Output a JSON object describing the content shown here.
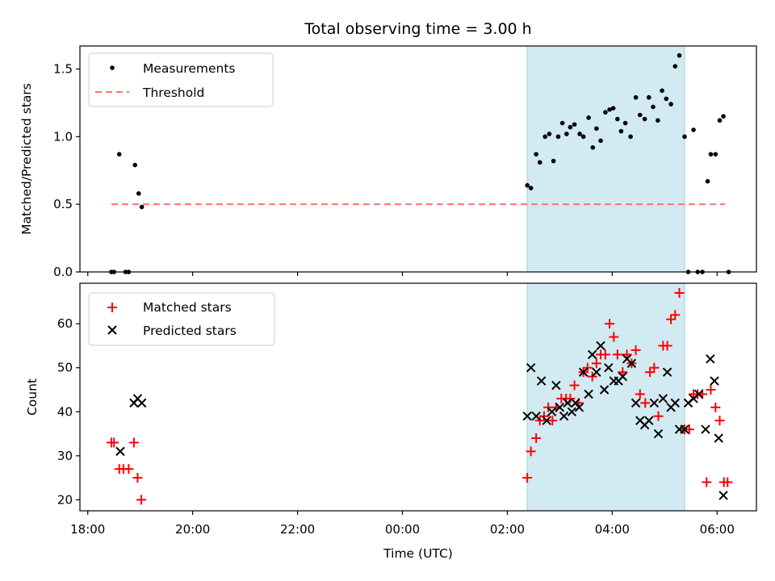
{
  "chart_data": {
    "title": "Total observing time = 3.00 h",
    "xlabel": "Time (UTC)",
    "x_tick_labels": [
      "18:00",
      "20:00",
      "22:00",
      "00:00",
      "02:00",
      "04:00",
      "06:00"
    ],
    "x_tick_hours": [
      18,
      20,
      22,
      24,
      26,
      28,
      30
    ],
    "xlim_hours": [
      17.85,
      30.75
    ],
    "shaded_interval_hours": [
      26.38,
      29.38
    ],
    "shaded_color": "#add8e6",
    "panels": [
      {
        "type": "scatter",
        "ylabel": "Matched/Predicted stars",
        "ylim": [
          0,
          1.67
        ],
        "y_ticks": [
          0.0,
          0.5,
          1.0,
          1.5
        ],
        "y_tick_labels": [
          "0.0",
          "0.5",
          "1.0",
          "1.5"
        ],
        "legend_position": "upper-left",
        "series": [
          {
            "name": "Measurements",
            "marker": "dot",
            "color": "#000000",
            "x_hours": [
              18.45,
              18.5,
              18.6,
              18.72,
              18.78,
              18.9,
              18.97,
              19.03,
              26.38,
              26.45,
              26.55,
              26.62,
              26.72,
              26.8,
              26.88,
              26.97,
              27.05,
              27.13,
              27.2,
              27.28,
              27.38,
              27.45,
              27.55,
              27.63,
              27.7,
              27.78,
              27.87,
              27.95,
              28.02,
              28.1,
              28.17,
              28.25,
              28.35,
              28.45,
              28.53,
              28.62,
              28.7,
              28.78,
              28.87,
              28.95,
              29.03,
              29.12,
              29.2,
              29.28,
              29.38,
              29.45,
              29.55,
              29.63,
              29.72,
              29.82,
              29.88,
              29.97,
              30.05,
              30.12,
              30.22
            ],
            "y": [
              0.0,
              0.0,
              0.87,
              0.0,
              0.0,
              0.79,
              0.58,
              0.48,
              0.64,
              0.62,
              0.87,
              0.81,
              1.0,
              1.02,
              0.82,
              1.0,
              1.1,
              1.02,
              1.07,
              1.09,
              1.02,
              1.0,
              1.14,
              0.92,
              1.06,
              0.97,
              1.18,
              1.2,
              1.21,
              1.13,
              1.04,
              1.1,
              1.0,
              1.29,
              1.16,
              1.13,
              1.29,
              1.22,
              1.12,
              1.34,
              1.28,
              1.24,
              1.52,
              1.6,
              1.0,
              0.0,
              1.05,
              0.0,
              0.0,
              0.67,
              0.87,
              0.87,
              1.12,
              1.15,
              0.0
            ]
          },
          {
            "name": "Threshold",
            "type": "line",
            "style": "dashed",
            "color": "#ff7070",
            "x_hours": [
              18.45,
              30.15
            ],
            "y": [
              0.5,
              0.5
            ]
          }
        ]
      },
      {
        "type": "scatter",
        "ylabel": "Count",
        "ylim": [
          17.5,
          69.2
        ],
        "y_ticks": [
          20,
          30,
          40,
          50,
          60
        ],
        "y_tick_labels": [
          "20",
          "30",
          "40",
          "50",
          "60"
        ],
        "legend_position": "upper-left",
        "series": [
          {
            "name": "Matched stars",
            "marker": "plus",
            "color": "#ff0000",
            "x_hours": [
              18.45,
              18.5,
              18.6,
              18.68,
              18.78,
              18.88,
              18.95,
              19.02,
              26.38,
              26.45,
              26.55,
              26.62,
              26.7,
              26.78,
              26.86,
              26.93,
              27.03,
              27.12,
              27.2,
              27.28,
              27.36,
              27.45,
              27.53,
              27.62,
              27.7,
              27.78,
              27.87,
              27.95,
              28.03,
              28.1,
              28.2,
              28.28,
              28.37,
              28.45,
              28.53,
              28.63,
              28.72,
              28.8,
              28.88,
              28.97,
              29.05,
              29.12,
              29.2,
              29.28,
              29.38,
              29.47,
              29.55,
              29.63,
              29.72,
              29.8,
              29.88,
              29.97,
              30.05,
              30.13,
              30.2
            ],
            "y": [
              33,
              33,
              27,
              27,
              27,
              33,
              25,
              20,
              25,
              31,
              34,
              38,
              39,
              41,
              38,
              41,
              43,
              43,
              43,
              46,
              42,
              49,
              50,
              48,
              51,
              53,
              53,
              60,
              57,
              53,
              49,
              53,
              51,
              54,
              44,
              42,
              49,
              50,
              39,
              55,
              55,
              61,
              62,
              67,
              36,
              36,
              44,
              44,
              44,
              24,
              45,
              41,
              38,
              24,
              24
            ]
          },
          {
            "name": "Predicted stars",
            "marker": "cross",
            "color": "#000000",
            "x_hours": [
              18.62,
              18.88,
              18.95,
              19.03,
              26.38,
              26.45,
              26.55,
              26.65,
              26.75,
              26.85,
              26.93,
              27.0,
              27.08,
              27.15,
              27.23,
              27.3,
              27.37,
              27.45,
              27.55,
              27.62,
              27.7,
              27.78,
              27.85,
              27.93,
              28.03,
              28.12,
              28.2,
              28.28,
              28.37,
              28.45,
              28.53,
              28.62,
              28.7,
              28.8,
              28.88,
              28.97,
              29.05,
              29.12,
              29.2,
              29.28,
              29.38,
              29.45,
              29.55,
              29.65,
              29.78,
              29.87,
              29.95,
              30.03,
              30.12
            ],
            "y": [
              31,
              42,
              43,
              42,
              39,
              50,
              39,
              47,
              38,
              40,
              46,
              41,
              39,
              42,
              40,
              42,
              41,
              49,
              44,
              53,
              49,
              55,
              45,
              50,
              47,
              47,
              48,
              52,
              51,
              42,
              38,
              37,
              38,
              42,
              35,
              43,
              49,
              41,
              42,
              36,
              36,
              42,
              43,
              44,
              36,
              52,
              47,
              34,
              21
            ]
          }
        ]
      }
    ]
  }
}
